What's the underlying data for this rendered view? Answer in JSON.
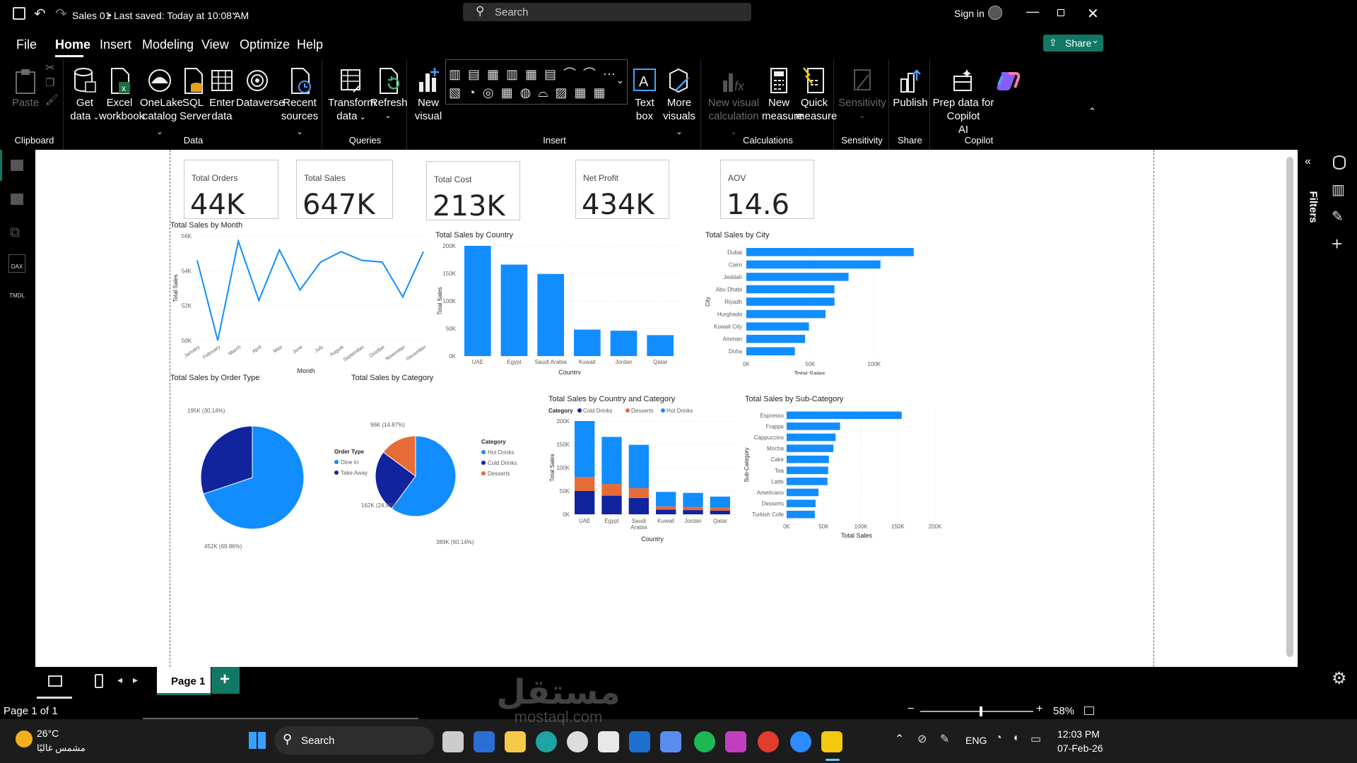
{
  "title_bar": {
    "doc_title": "Sales 01",
    "saved_text": "Last saved: Today at 10:08 AM",
    "search_placeholder": "Search",
    "sign_in": "Sign in"
  },
  "menu": {
    "items": [
      "File",
      "Home",
      "Insert",
      "Modeling",
      "View",
      "Optimize",
      "Help"
    ],
    "active": "Home",
    "share_label": "Share"
  },
  "ribbon": {
    "clipboard": {
      "paste": "Paste",
      "group": "Clipboard"
    },
    "data": {
      "get_data_1": "Get",
      "get_data_2": "data",
      "excel_1": "Excel",
      "excel_2": "workbook",
      "onelake_1": "OneLake",
      "onelake_2": "catalog",
      "sql_1": "SQL",
      "sql_2": "Server",
      "enter_1": "Enter",
      "enter_2": "data",
      "dataverse": "Dataverse",
      "recent_1": "Recent",
      "recent_2": "sources",
      "group": "Data"
    },
    "queries": {
      "transform_1": "Transform",
      "transform_2": "data",
      "refresh": "Refresh",
      "group": "Queries"
    },
    "insert": {
      "new_visual_1": "New",
      "new_visual_2": "visual",
      "text_box_1": "Text",
      "text_box_2": "box",
      "more_visuals_1": "More",
      "more_visuals_2": "visuals",
      "group": "Insert"
    },
    "calculations": {
      "new_calc_1": "New visual",
      "new_calc_2": "calculation",
      "new_measure_1": "New",
      "new_measure_2": "measure",
      "quick_measure_1": "Quick",
      "quick_measure_2": "measure",
      "group": "Calculations"
    },
    "sensitivity": {
      "label": "Sensitivity",
      "group": "Sensitivity"
    },
    "share": {
      "publish": "Publish",
      "group": "Share"
    },
    "copilot": {
      "prep_1": "Prep data for Copilot",
      "prep_2": "AI",
      "group": "Copilot"
    }
  },
  "left_rail": {
    "dax": "DAX",
    "tmdl": "TMDL"
  },
  "filters_label": "Filters",
  "cards": [
    {
      "label": "Total Orders",
      "value": "44K"
    },
    {
      "label": "Total Sales",
      "value": "647K"
    },
    {
      "label": "Total Cost",
      "value": "213K"
    },
    {
      "label": "Net Profit",
      "value": "434K"
    },
    {
      "label": "AOV",
      "value": "14.6"
    }
  ],
  "colors": {
    "primary": "#118DFF",
    "dark": "#12239E",
    "orange": "#E66C37",
    "ribbon_bg": "#000000",
    "accent_green": "#117865"
  },
  "chart_data": [
    {
      "type": "line",
      "title": "Total Sales by Month",
      "xlabel": "Month",
      "ylabel": "Total Sales",
      "categories": [
        "January",
        "February",
        "March",
        "April",
        "May",
        "June",
        "July",
        "August",
        "September",
        "October",
        "November",
        "December"
      ],
      "values": [
        54600,
        50000,
        55700,
        52300,
        55200,
        52900,
        54500,
        55100,
        54600,
        54500,
        52500,
        55100
      ],
      "ylim": [
        50000,
        56000
      ],
      "yticks": [
        "50K",
        "52K",
        "54K",
        "56K"
      ]
    },
    {
      "type": "bar",
      "title": "Total Sales by Country",
      "xlabel": "Country",
      "ylabel": "Total Sales",
      "categories": [
        "UAE",
        "Egypt",
        "Saudi Arabia",
        "Kuwait",
        "Jordan",
        "Qatar"
      ],
      "values": [
        200000,
        166000,
        149000,
        48000,
        46000,
        38000
      ],
      "ylim": [
        0,
        200000
      ],
      "yticks": [
        "0K",
        "50K",
        "100K",
        "150K",
        "200K"
      ]
    },
    {
      "type": "bar",
      "orientation": "horizontal",
      "title": "Total Sales by City",
      "xlabel": "Total Sales",
      "ylabel": "City",
      "categories": [
        "Dubai",
        "Cairo",
        "Jeddah",
        "Abu Dhabi",
        "Riyadh",
        "Hurghada",
        "Kuwait City",
        "Amman",
        "Doha"
      ],
      "values": [
        131000,
        105000,
        80000,
        69000,
        69000,
        62000,
        49000,
        46000,
        38000
      ],
      "xlim": [
        0,
        130000
      ],
      "xticks": [
        "0K",
        "50K",
        "100K"
      ]
    },
    {
      "type": "pie",
      "title": "Total Sales by Order Type",
      "legend_title": "Order Type",
      "categories": [
        "Dine In",
        "Take Away"
      ],
      "values": [
        452000,
        195000
      ],
      "data_labels": [
        "452K (69.86%)",
        "195K (30.14%)"
      ]
    },
    {
      "type": "pie",
      "title": "Total Sales by Category",
      "legend_title": "Category",
      "categories": [
        "Hot  Drinks",
        "Cold  Drinks",
        "Desserts"
      ],
      "values": [
        389000,
        162000,
        96000
      ],
      "data_labels": [
        "389K (60.14%)",
        "162K (24.99%)",
        "96K (14.87%)"
      ]
    },
    {
      "type": "bar",
      "stacked": true,
      "title": "Total Sales by Country and Category",
      "legend_title": "Category",
      "xlabel": "Country",
      "ylabel": "Total Sales",
      "categories": [
        "UAE",
        "Egypt",
        "Saudi Arabia",
        "Kuwait",
        "Jordan",
        "Qatar"
      ],
      "series": [
        {
          "name": "Cold  Drinks",
          "values": [
            50000,
            40000,
            35000,
            10000,
            9000,
            8000
          ]
        },
        {
          "name": "Desserts",
          "values": [
            30000,
            25000,
            21000,
            7000,
            7000,
            6000
          ]
        },
        {
          "name": "Hot  Drinks",
          "values": [
            120000,
            101000,
            93000,
            31000,
            30000,
            24000
          ]
        }
      ],
      "ylim": [
        0,
        200000
      ],
      "yticks": [
        "0K",
        "50K",
        "100K",
        "150K",
        "200K"
      ]
    },
    {
      "type": "bar",
      "orientation": "horizontal",
      "title": "Total Sales by Sub-Category",
      "xlabel": "Total Sales",
      "ylabel": "Sub-Category",
      "categories": [
        "Espresso",
        "Frappe",
        "Cappuccino",
        "Mocha",
        "Cake",
        "Tea",
        "Latte",
        "Americano",
        "Desserts",
        "Turkish Cofe"
      ],
      "values": [
        155000,
        72000,
        66000,
        63000,
        57000,
        56000,
        55000,
        43000,
        39000,
        38000
      ],
      "xlim": [
        0,
        200000
      ],
      "xticks": [
        "0K",
        "50K",
        "100K",
        "150K",
        "200K"
      ]
    }
  ],
  "page_bar": {
    "page_tab": "Page 1",
    "add_label": "+"
  },
  "status": {
    "page_info": "Page 1 of 1",
    "zoom": "58%"
  },
  "taskbar": {
    "weather_temp": "26°C",
    "weather_desc": "مشمس غالبًا",
    "search": "Search",
    "lang": "ENG",
    "time": "12:03 PM",
    "date": "07-Feb-26"
  },
  "watermark": {
    "arabic": "مستقل",
    "latin": "mostaql.com"
  }
}
